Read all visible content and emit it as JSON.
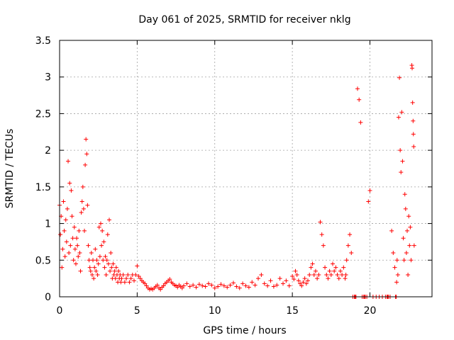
{
  "chart_data": {
    "type": "scatter",
    "title": "Day 061 of 2025, SRMTID for receiver nklg",
    "xlabel": "GPS time / hours",
    "ylabel": "SRMTID / TECUs",
    "xlim": [
      0,
      24
    ],
    "ylim": [
      0,
      3.5
    ],
    "xticks": [
      0,
      5,
      10,
      15,
      20
    ],
    "xtick_labels": [
      "0",
      "5",
      "10",
      "15",
      "20"
    ],
    "yticks": [
      0,
      0.5,
      1,
      1.5,
      2,
      2.5,
      3,
      3.5
    ],
    "ytick_labels": [
      "0",
      "0.5",
      "1",
      "1.5",
      "2",
      "2.5",
      "3",
      "3.5"
    ],
    "grid": true,
    "marker": "+",
    "color": "#ff0000",
    "series": [
      {
        "name": "nklg",
        "x": [
          0.0,
          0.05,
          0.1,
          0.15,
          0.2,
          0.25,
          0.3,
          0.35,
          0.4,
          0.45,
          0.5,
          0.55,
          0.6,
          0.65,
          0.7,
          0.75,
          0.8,
          0.85,
          0.9,
          0.95,
          1.0,
          1.05,
          1.1,
          1.15,
          1.2,
          1.25,
          1.3,
          1.35,
          1.4,
          1.45,
          1.5,
          1.55,
          1.6,
          1.65,
          1.7,
          1.75,
          1.8,
          1.85,
          1.9,
          1.95,
          2.0,
          2.05,
          2.1,
          2.15,
          2.2,
          2.25,
          2.3,
          2.35,
          2.4,
          2.45,
          2.5,
          2.55,
          2.6,
          2.65,
          2.7,
          2.75,
          2.8,
          2.85,
          2.9,
          2.95,
          3.0,
          3.05,
          3.1,
          3.15,
          3.2,
          3.25,
          3.3,
          3.35,
          3.4,
          3.45,
          3.5,
          3.55,
          3.6,
          3.65,
          3.7,
          3.75,
          3.8,
          3.85,
          3.9,
          3.95,
          4.0,
          4.1,
          4.2,
          4.3,
          4.4,
          4.5,
          4.6,
          4.7,
          4.8,
          4.9,
          5.0,
          5.1,
          5.2,
          5.3,
          5.4,
          5.5,
          5.6,
          5.7,
          5.8,
          5.9,
          6.0,
          6.1,
          6.2,
          6.3,
          6.4,
          6.5,
          6.6,
          6.7,
          6.8,
          6.9,
          7.0,
          7.1,
          7.2,
          7.3,
          7.4,
          7.5,
          7.6,
          7.7,
          7.8,
          7.9,
          8.0,
          8.2,
          8.4,
          8.6,
          8.8,
          9.0,
          9.2,
          9.4,
          9.6,
          9.8,
          10.0,
          10.2,
          10.4,
          10.6,
          10.8,
          11.0,
          11.2,
          11.4,
          11.6,
          11.8,
          12.0,
          12.2,
          12.4,
          12.6,
          12.8,
          13.0,
          13.2,
          13.4,
          13.6,
          13.8,
          14.0,
          14.2,
          14.4,
          14.6,
          14.8,
          15.0,
          15.1,
          15.2,
          15.3,
          15.4,
          15.5,
          15.6,
          15.7,
          15.8,
          15.9,
          16.0,
          16.1,
          16.2,
          16.3,
          16.4,
          16.5,
          16.6,
          16.7,
          16.8,
          16.9,
          17.0,
          17.1,
          17.2,
          17.3,
          17.4,
          17.5,
          17.6,
          17.7,
          17.8,
          17.9,
          18.0,
          18.1,
          18.2,
          18.3,
          18.4,
          18.45,
          18.5,
          18.6,
          18.7,
          18.8,
          18.9,
          19.0,
          19.02,
          19.05,
          19.1,
          19.2,
          19.3,
          19.4,
          19.5,
          19.6,
          19.65,
          19.7,
          19.8,
          19.9,
          20.0,
          20.2,
          20.4,
          20.6,
          20.8,
          21.0,
          21.1,
          21.15,
          21.2,
          21.3,
          21.4,
          21.5,
          21.6,
          21.65,
          21.7,
          21.72,
          21.75,
          21.8,
          21.85,
          21.9,
          21.95,
          22.0,
          22.05,
          22.1,
          22.15,
          22.2,
          22.25,
          22.3,
          22.35,
          22.4,
          22.45,
          22.5,
          22.55,
          22.6,
          22.65,
          22.7,
          22.72,
          22.75,
          22.78,
          22.8,
          22.82,
          22.85
        ],
        "y": [
          1.25,
          0.85,
          1.1,
          0.4,
          0.65,
          1.3,
          0.9,
          0.55,
          1.05,
          0.75,
          1.2,
          1.85,
          0.6,
          1.55,
          0.7,
          1.45,
          1.1,
          0.8,
          0.5,
          0.95,
          0.65,
          0.45,
          0.8,
          0.7,
          0.55,
          0.9,
          0.6,
          0.35,
          1.15,
          1.3,
          1.5,
          1.2,
          0.9,
          1.8,
          2.15,
          1.95,
          1.25,
          0.7,
          0.5,
          0.4,
          0.35,
          0.6,
          0.3,
          0.5,
          0.25,
          0.4,
          0.65,
          0.35,
          0.5,
          0.3,
          0.45,
          0.95,
          0.55,
          1.0,
          0.7,
          0.9,
          0.5,
          0.75,
          0.4,
          0.55,
          0.3,
          0.5,
          0.85,
          0.45,
          1.05,
          0.35,
          0.6,
          0.4,
          0.25,
          0.45,
          0.3,
          0.35,
          0.25,
          0.4,
          0.3,
          0.2,
          0.35,
          0.25,
          0.3,
          0.2,
          0.25,
          0.3,
          0.2,
          0.25,
          0.3,
          0.2,
          0.25,
          0.3,
          0.22,
          0.3,
          0.42,
          0.28,
          0.25,
          0.22,
          0.2,
          0.18,
          0.15,
          0.12,
          0.1,
          0.11,
          0.1,
          0.12,
          0.14,
          0.16,
          0.12,
          0.1,
          0.13,
          0.15,
          0.18,
          0.2,
          0.22,
          0.24,
          0.2,
          0.18,
          0.16,
          0.15,
          0.13,
          0.16,
          0.14,
          0.12,
          0.15,
          0.18,
          0.14,
          0.16,
          0.13,
          0.17,
          0.15,
          0.14,
          0.18,
          0.16,
          0.12,
          0.14,
          0.17,
          0.15,
          0.13,
          0.16,
          0.19,
          0.14,
          0.12,
          0.18,
          0.15,
          0.13,
          0.2,
          0.16,
          0.25,
          0.3,
          0.18,
          0.15,
          0.22,
          0.14,
          0.16,
          0.25,
          0.18,
          0.22,
          0.15,
          0.28,
          0.24,
          0.35,
          0.3,
          0.22,
          0.18,
          0.15,
          0.2,
          0.25,
          0.18,
          0.22,
          0.3,
          0.4,
          0.45,
          0.3,
          0.35,
          0.25,
          0.3,
          1.02,
          0.85,
          0.7,
          0.4,
          0.3,
          0.25,
          0.35,
          0.3,
          0.45,
          0.35,
          0.4,
          0.3,
          0.25,
          0.35,
          0.3,
          0.4,
          0.25,
          0.3,
          0.5,
          0.7,
          0.85,
          0.6,
          0.0,
          0.0,
          0.0,
          0.0,
          0.0,
          2.84,
          2.69,
          2.38,
          0.0,
          0.0,
          0.0,
          0.0,
          0.0,
          1.3,
          1.45,
          0.0,
          0.0,
          0.0,
          0.0,
          0.0,
          0.0,
          0.0,
          0.0,
          0.0,
          0.9,
          0.6,
          0.4,
          0.0,
          0.0,
          0.2,
          0.5,
          0.3,
          2.45,
          2.99,
          2.0,
          1.7,
          2.52,
          1.85,
          0.8,
          0.5,
          1.4,
          1.2,
          0.6,
          0.9,
          0.3,
          1.1,
          0.7,
          0.95,
          0.5,
          3.16,
          3.12,
          2.65,
          2.4,
          2.22,
          2.05,
          0.7
        ]
      }
    ]
  }
}
